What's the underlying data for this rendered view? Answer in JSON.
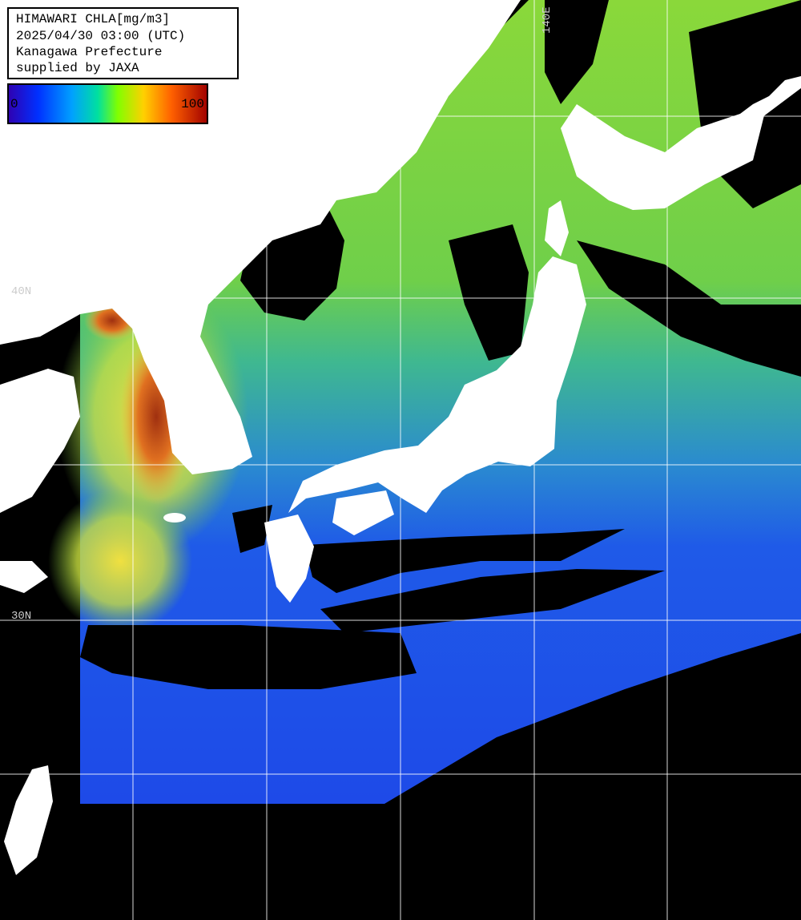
{
  "header": {
    "lines": [
      "HIMAWARI CHLA[mg/m3]",
      "2025/04/30 03:00 (UTC)",
      "Kanagawa Prefecture",
      "supplied by JAXA"
    ]
  },
  "colorbar": {
    "min": 0,
    "max": 100
  },
  "grid_labels": {
    "lat_40": "40N",
    "lat_30": "30N",
    "lon_140": "140E"
  }
}
